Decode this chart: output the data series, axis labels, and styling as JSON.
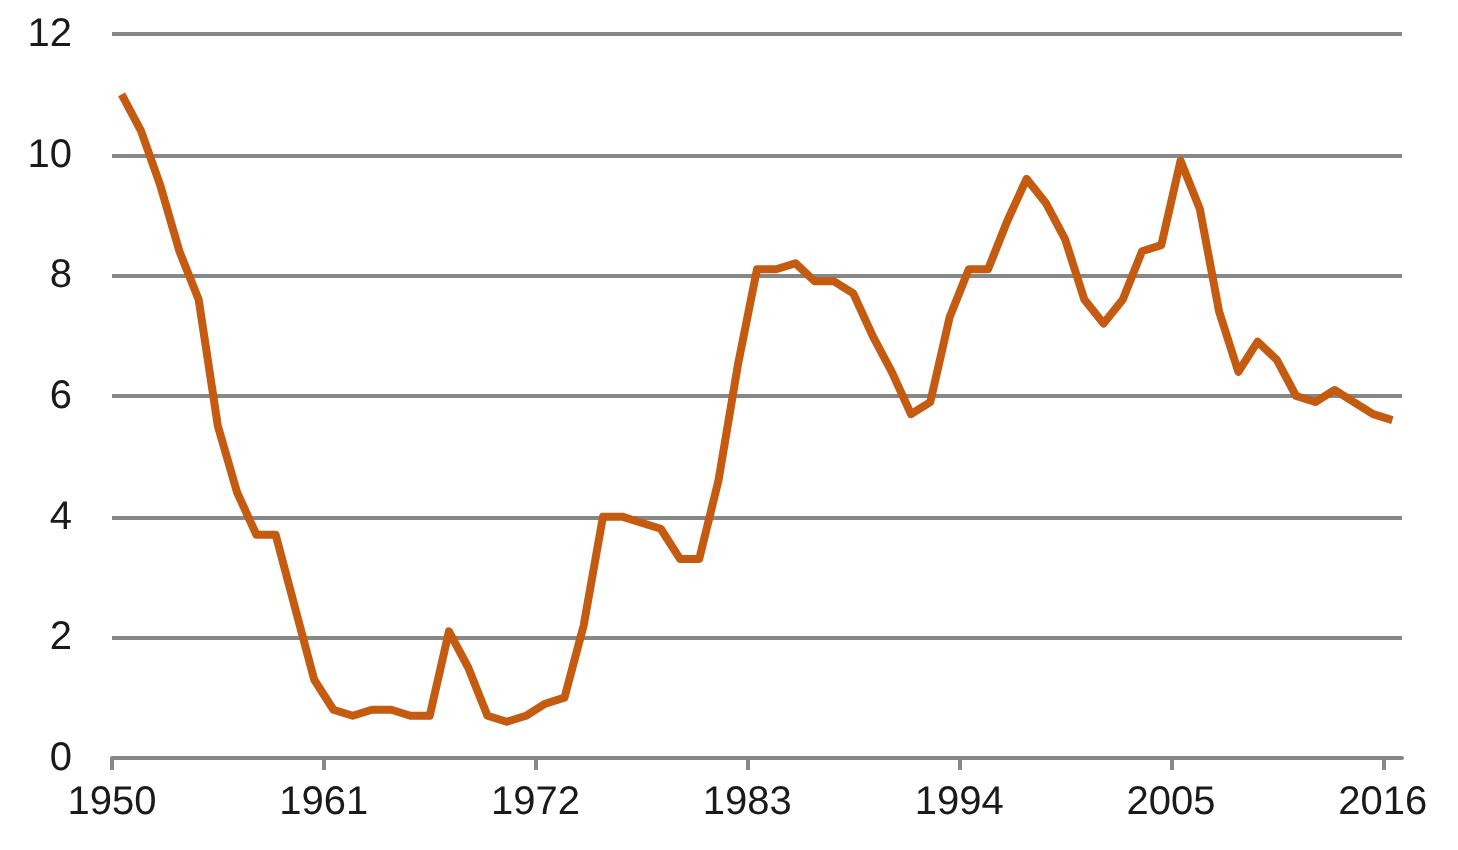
{
  "chart_data": {
    "type": "line",
    "x": [
      1950.5,
      1951.5,
      1952.5,
      1953.5,
      1954.5,
      1955.5,
      1956.5,
      1957.5,
      1958.5,
      1959.5,
      1960.5,
      1961.5,
      1962.5,
      1963.5,
      1964.5,
      1965.5,
      1966.5,
      1967.5,
      1968.5,
      1969.5,
      1970.5,
      1971.5,
      1972.5,
      1973.5,
      1974.5,
      1975.5,
      1976.5,
      1977.5,
      1978.5,
      1979.5,
      1980.5,
      1981.5,
      1982.5,
      1983.5,
      1984.5,
      1985.5,
      1986.5,
      1987.5,
      1988.5,
      1989.5,
      1990.5,
      1991.5,
      1992.5,
      1993.5,
      1994.5,
      1995.5,
      1996.5,
      1997.5,
      1998.5,
      1999.5,
      2000.5,
      2001.5,
      2002.5,
      2003.5,
      2004.5,
      2005.5,
      2006.5,
      2007.5,
      2008.5,
      2009.5,
      2010.5,
      2011.5,
      2012.5,
      2013.5,
      2014.5,
      2015.5,
      2016.5
    ],
    "series": [
      {
        "color": "#c55a11",
        "values": [
          11.0,
          10.4,
          9.5,
          8.4,
          7.6,
          5.5,
          4.4,
          3.7,
          3.7,
          2.5,
          1.3,
          0.8,
          0.7,
          0.8,
          0.8,
          0.7,
          0.7,
          2.1,
          1.5,
          0.7,
          0.6,
          0.7,
          0.9,
          1.0,
          2.2,
          4.0,
          4.0,
          3.9,
          3.8,
          3.3,
          3.3,
          4.6,
          6.5,
          8.1,
          8.1,
          8.2,
          7.9,
          7.9,
          7.7,
          7.0,
          6.4,
          5.7,
          5.9,
          7.3,
          8.1,
          8.1,
          8.9,
          9.6,
          9.2,
          8.6,
          7.6,
          7.2,
          7.6,
          8.4,
          8.5,
          9.9,
          9.1,
          7.4,
          6.4,
          6.9,
          6.6,
          6.0,
          5.9,
          6.1,
          5.9,
          5.7,
          5.6
        ]
      }
    ],
    "xlim": [
      1950,
      2017
    ],
    "xticks": [
      1950,
      1961,
      1972,
      1983,
      1994,
      2005,
      2016
    ],
    "ylim": [
      0,
      12
    ],
    "yticks": [
      0,
      2,
      4,
      6,
      8,
      10,
      12
    ],
    "grid": "y",
    "marker": "none",
    "line_style": "solid"
  }
}
